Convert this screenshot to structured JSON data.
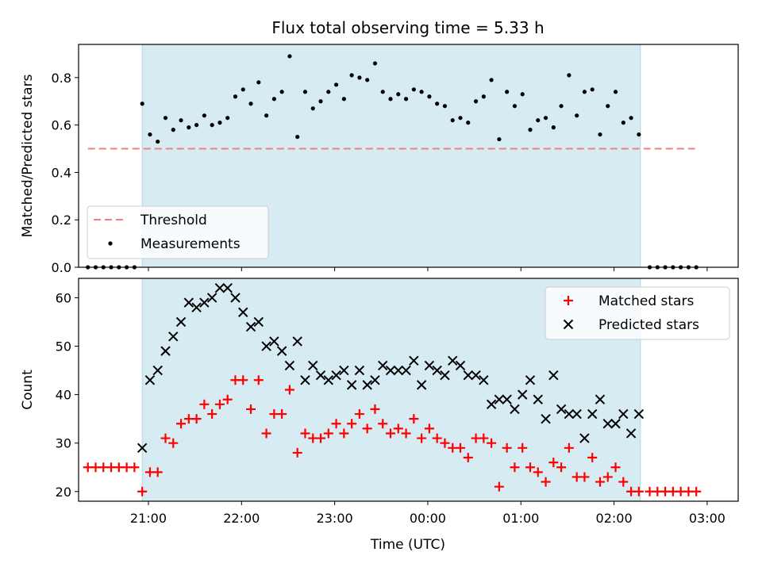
{
  "chart_data": [
    {
      "type": "scatter",
      "title": "Flux total observing time = 5.33 h",
      "ylabel": "Matched/Predicted stars",
      "xlabel": "",
      "xlim": [
        "20:15",
        "03:20"
      ],
      "ylim": [
        0,
        0.94
      ],
      "yticks": [
        0.0,
        0.2,
        0.4,
        0.6,
        0.8
      ],
      "ytick_labels": [
        "0.0",
        "0.2",
        "0.4",
        "0.6",
        "0.8"
      ],
      "shaded_region": {
        "start": "20:56",
        "end": "02:17",
        "color": "#add8e6"
      },
      "threshold": {
        "name": "Threshold",
        "value": 0.5,
        "x_start": "20:21",
        "x_end": "02:53",
        "color": "#f08080"
      },
      "legend": {
        "position": "lower-left",
        "entries": [
          "Threshold",
          "Measurements"
        ]
      },
      "series": [
        {
          "name": "Measurements",
          "color": "#000000",
          "x": [
            "20:21",
            "20:26",
            "20:31",
            "20:36",
            "20:41",
            "20:46",
            "20:51",
            "20:56",
            "21:01",
            "21:06",
            "21:11",
            "21:16",
            "21:21",
            "21:26",
            "21:31",
            "21:36",
            "21:41",
            "21:46",
            "21:51",
            "21:56",
            "22:01",
            "22:06",
            "22:11",
            "22:16",
            "22:21",
            "22:26",
            "22:31",
            "22:36",
            "22:41",
            "22:46",
            "22:51",
            "22:56",
            "23:01",
            "23:06",
            "23:11",
            "23:16",
            "23:21",
            "23:26",
            "23:31",
            "23:36",
            "23:41",
            "23:46",
            "23:51",
            "23:56",
            "00:01",
            "00:06",
            "00:11",
            "00:16",
            "00:21",
            "00:26",
            "00:31",
            "00:36",
            "00:41",
            "00:46",
            "00:51",
            "00:56",
            "01:01",
            "01:06",
            "01:11",
            "01:16",
            "01:21",
            "01:26",
            "01:31",
            "01:36",
            "01:41",
            "01:46",
            "01:51",
            "01:56",
            "02:01",
            "02:06",
            "02:11",
            "02:16",
            "02:23",
            "02:28",
            "02:33",
            "02:38",
            "02:43",
            "02:48",
            "02:53"
          ],
          "y": [
            0,
            0,
            0,
            0,
            0,
            0,
            0,
            0.69,
            0.56,
            0.53,
            0.63,
            0.58,
            0.62,
            0.59,
            0.6,
            0.64,
            0.6,
            0.61,
            0.63,
            0.72,
            0.75,
            0.69,
            0.78,
            0.64,
            0.71,
            0.74,
            0.89,
            0.55,
            0.74,
            0.67,
            0.7,
            0.74,
            0.77,
            0.71,
            0.81,
            0.8,
            0.79,
            0.86,
            0.74,
            0.71,
            0.73,
            0.71,
            0.75,
            0.74,
            0.72,
            0.69,
            0.68,
            0.62,
            0.63,
            0.61,
            0.7,
            0.72,
            0.79,
            0.54,
            0.74,
            0.68,
            0.73,
            0.58,
            0.62,
            0.63,
            0.59,
            0.68,
            0.81,
            0.64,
            0.74,
            0.75,
            0.56,
            0.68,
            0.74,
            0.61,
            0.63,
            0.56,
            0,
            0,
            0,
            0,
            0,
            0,
            0
          ]
        }
      ]
    },
    {
      "type": "scatter",
      "title": "",
      "ylabel": "Count",
      "xlabel": "Time (UTC)",
      "xlim": [
        "20:15",
        "03:20"
      ],
      "ylim": [
        18,
        64
      ],
      "yticks": [
        20,
        30,
        40,
        50,
        60
      ],
      "ytick_labels": [
        "20",
        "30",
        "40",
        "50",
        "60"
      ],
      "xticks": [
        "21:00",
        "22:00",
        "23:00",
        "00:00",
        "01:00",
        "02:00",
        "03:00"
      ],
      "xtick_labels": [
        "21:00",
        "22:00",
        "23:00",
        "00:00",
        "01:00",
        "02:00",
        "03:00"
      ],
      "shaded_region": {
        "start": "20:56",
        "end": "02:17",
        "color": "#add8e6"
      },
      "legend": {
        "position": "top-right",
        "entries": [
          "Matched stars",
          "Predicted stars"
        ]
      },
      "series": [
        {
          "name": "Matched stars",
          "marker": "plus",
          "color": "#ff0000",
          "x": [
            "20:21",
            "20:26",
            "20:31",
            "20:36",
            "20:41",
            "20:46",
            "20:51",
            "20:56",
            "21:01",
            "21:06",
            "21:11",
            "21:16",
            "21:21",
            "21:26",
            "21:31",
            "21:36",
            "21:41",
            "21:46",
            "21:51",
            "21:56",
            "22:01",
            "22:06",
            "22:11",
            "22:16",
            "22:21",
            "22:26",
            "22:31",
            "22:36",
            "22:41",
            "22:46",
            "22:51",
            "22:56",
            "23:01",
            "23:06",
            "23:11",
            "23:16",
            "23:21",
            "23:26",
            "23:31",
            "23:36",
            "23:41",
            "23:46",
            "23:51",
            "23:56",
            "00:01",
            "00:06",
            "00:11",
            "00:16",
            "00:21",
            "00:26",
            "00:31",
            "00:36",
            "00:41",
            "00:46",
            "00:51",
            "00:56",
            "01:01",
            "01:06",
            "01:11",
            "01:16",
            "01:21",
            "01:26",
            "01:31",
            "01:36",
            "01:41",
            "01:46",
            "01:51",
            "01:56",
            "02:01",
            "02:06",
            "02:11",
            "02:16",
            "02:23",
            "02:28",
            "02:33",
            "02:38",
            "02:43",
            "02:48",
            "02:53"
          ],
          "y": [
            25,
            25,
            25,
            25,
            25,
            25,
            25,
            20,
            24,
            24,
            31,
            30,
            34,
            35,
            35,
            38,
            36,
            38,
            39,
            43,
            43,
            37,
            43,
            32,
            36,
            36,
            41,
            28,
            32,
            31,
            31,
            32,
            34,
            32,
            34,
            36,
            33,
            37,
            34,
            32,
            33,
            32,
            35,
            31,
            33,
            31,
            30,
            29,
            29,
            27,
            31,
            31,
            30,
            21,
            29,
            25,
            29,
            25,
            24,
            22,
            26,
            25,
            29,
            23,
            23,
            27,
            22,
            23,
            25,
            22,
            20,
            20,
            20,
            20,
            20,
            20,
            20,
            20,
            20
          ]
        },
        {
          "name": "Predicted stars",
          "marker": "x",
          "color": "#000000",
          "x": [
            "20:56",
            "21:01",
            "21:06",
            "21:11",
            "21:16",
            "21:21",
            "21:26",
            "21:31",
            "21:36",
            "21:41",
            "21:46",
            "21:51",
            "21:56",
            "22:01",
            "22:06",
            "22:11",
            "22:16",
            "22:21",
            "22:26",
            "22:31",
            "22:36",
            "22:41",
            "22:46",
            "22:51",
            "22:56",
            "23:01",
            "23:06",
            "23:11",
            "23:16",
            "23:21",
            "23:26",
            "23:31",
            "23:36",
            "23:41",
            "23:46",
            "23:51",
            "23:56",
            "00:01",
            "00:06",
            "00:11",
            "00:16",
            "00:21",
            "00:26",
            "00:31",
            "00:36",
            "00:41",
            "00:46",
            "00:51",
            "00:56",
            "01:01",
            "01:06",
            "01:11",
            "01:16",
            "01:21",
            "01:26",
            "01:31",
            "01:36",
            "01:41",
            "01:46",
            "01:51",
            "01:56",
            "02:01",
            "02:06",
            "02:11",
            "02:16"
          ],
          "y": [
            29,
            43,
            45,
            49,
            52,
            55,
            59,
            58,
            59,
            60,
            62,
            62,
            60,
            57,
            54,
            55,
            50,
            51,
            49,
            46,
            51,
            43,
            46,
            44,
            43,
            44,
            45,
            42,
            45,
            42,
            43,
            46,
            45,
            45,
            45,
            47,
            42,
            46,
            45,
            44,
            47,
            46,
            44,
            44,
            43,
            38,
            39,
            39,
            37,
            40,
            43,
            39,
            35,
            44,
            37,
            36,
            36,
            31,
            36,
            39,
            34,
            34,
            36,
            32,
            36
          ]
        }
      ]
    }
  ]
}
